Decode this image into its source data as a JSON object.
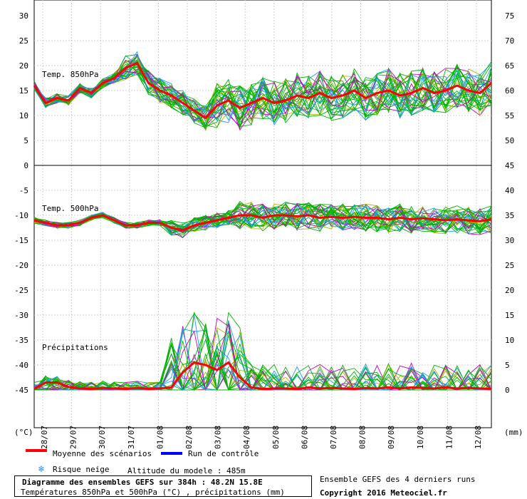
{
  "chart_data": {
    "type": "line",
    "x_dates": [
      "28/07",
      "29/07",
      "30/07",
      "31/07",
      "01/08",
      "02/08",
      "03/08",
      "04/08",
      "05/08",
      "06/08",
      "07/08",
      "08/08",
      "09/08",
      "10/08",
      "11/08",
      "12/08"
    ],
    "x_step_hours": 6,
    "left_axis_ticks": [
      "30",
      "25",
      "20",
      "15",
      "10",
      "5",
      "0",
      "-5",
      "-10",
      "-15",
      "-20",
      "-25",
      "-30",
      "-35",
      "-40",
      "-45"
    ],
    "left_axis_unit": "(°C)",
    "right_axis_top_ticks": [
      "75",
      "70",
      "65",
      "60",
      "55",
      "50"
    ],
    "right_axis_bottom_ticks": [
      "45",
      "40",
      "35",
      "30",
      "25",
      "20",
      "15",
      "10",
      "5",
      "0"
    ],
    "right_axis_unit": "(mm)",
    "panels": [
      {
        "label": "Temp. 850hPa",
        "unit": "°C",
        "ylim": [
          0,
          30
        ],
        "mean_t850": [
          16.0,
          12.5,
          13.5,
          13.0,
          15.5,
          14.5,
          16.5,
          17.5,
          19.5,
          20.5,
          16.5,
          15.0,
          14.0,
          12.5,
          11.0,
          9.5,
          12.0,
          13.0,
          11.5,
          12.5,
          13.5,
          12.5,
          13.0,
          14.0,
          13.5,
          14.5,
          13.5,
          14.0,
          15.0,
          13.5,
          14.5,
          15.0,
          14.0,
          14.5,
          15.5,
          14.5,
          15.0,
          16.0,
          15.0,
          14.5,
          16.5
        ]
      },
      {
        "label": "Temp. 500hPa",
        "unit": "°C",
        "ylim": [
          -45,
          0
        ],
        "mean_t500": [
          -11.0,
          -11.5,
          -12.0,
          -12.0,
          -11.5,
          -10.5,
          -10.0,
          -11.0,
          -12.0,
          -12.0,
          -11.5,
          -11.5,
          -12.5,
          -13.0,
          -12.0,
          -11.5,
          -11.0,
          -10.5,
          -10.0,
          -10.0,
          -10.5,
          -10.0,
          -10.0,
          -10.2,
          -10.0,
          -10.5,
          -10.3,
          -10.5,
          -10.3,
          -10.5,
          -10.5,
          -10.8,
          -10.5,
          -10.8,
          -10.6,
          -10.8,
          -11.0,
          -10.8,
          -11.0,
          -11.2,
          -10.8
        ]
      },
      {
        "label": "Précipitations",
        "unit": "mm",
        "ylim": [
          0,
          45
        ],
        "mean_precip": [
          0.2,
          1.5,
          1.5,
          0.6,
          0.3,
          0.2,
          0.4,
          0.3,
          0.2,
          0.4,
          0.2,
          0.3,
          0.5,
          3.5,
          5.5,
          5.0,
          4.0,
          5.5,
          2.5,
          0.5,
          0.2,
          0.3,
          0.3,
          0.2,
          0.5,
          0.3,
          0.4,
          0.3,
          0.2,
          0.4,
          0.3,
          0.5,
          0.3,
          0.5,
          0.4,
          0.3,
          0.5,
          0.3,
          0.4,
          0.3,
          0.2
        ]
      }
    ],
    "series_meta": [
      {
        "name": "Moyenne des scénarios",
        "color": "#ff0000"
      },
      {
        "name": "Run de contrôle",
        "color": "#0000ff"
      }
    ],
    "member_colors": [
      "#00b400",
      "#00b400",
      "#00b400",
      "#00b400",
      "#c800c8",
      "#1e9bff",
      "#b4b400"
    ],
    "grid": true
  },
  "legend": {
    "mean_label": "Moyenne des scénarios",
    "mean_color": "#ff0000",
    "control_label": "Run de contrôle",
    "control_color": "#0000ff",
    "snow_label": "Risque neige",
    "snow_icon": "snowflake-icon",
    "altitude_label": "Altitude du modele : 485m"
  },
  "footer": {
    "title": "Diagramme des ensembles GEFS sur 384h : 48.2N 15.8E",
    "subtitle": "Températures 850hPa et 500hPa (°C) , précipitations (mm)",
    "runs_note": "Ensemble GEFS des 4 derniers runs",
    "copyright": "Copyright 2016 Meteociel.fr"
  }
}
